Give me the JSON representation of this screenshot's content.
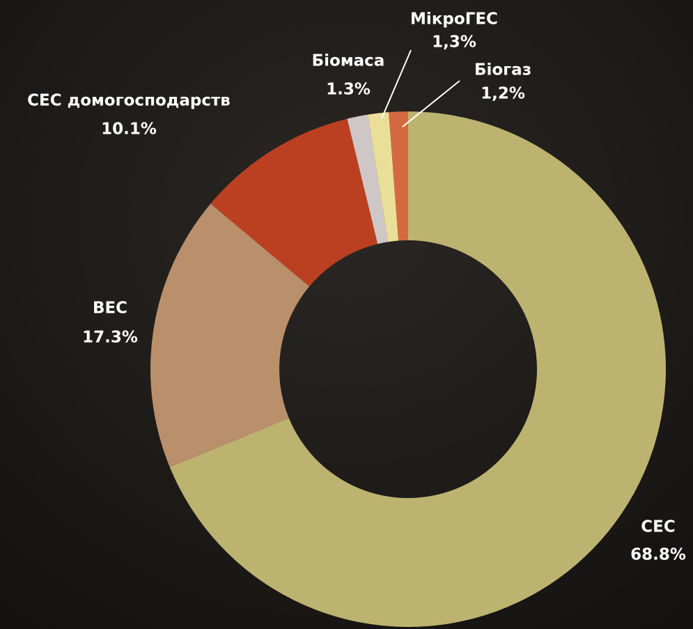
{
  "chart_data": {
    "type": "donut",
    "categories": [
      "СЕС",
      "ВЕС",
      "СЕС домогосподарств",
      "Біомаса",
      "МікроГЕС",
      "Біогаз"
    ],
    "values": [
      68.8,
      17.3,
      10.1,
      1.3,
      1.3,
      1.2
    ],
    "value_labels": [
      "68.8%",
      "17.3%",
      "10.1%",
      "1.3%",
      "1,3%",
      "1,2%"
    ],
    "colors": [
      "#bdb370",
      "#b98f6c",
      "#bb4021",
      "#cfc7c6",
      "#e9df98",
      "#d4693f"
    ]
  }
}
